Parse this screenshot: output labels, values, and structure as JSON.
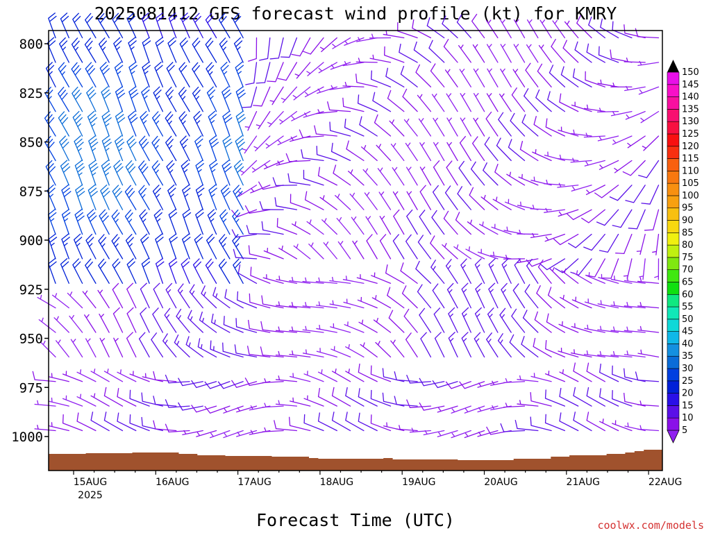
{
  "chart_data": {
    "type": "wind-barb-profile",
    "title": "2025081412 GFS forecast wind profile (kt) for KMRY",
    "xlabel": "Forecast Time (UTC)",
    "ylabel": "",
    "x_ticks": [
      "15AUG",
      "16AUG",
      "17AUG",
      "18AUG",
      "19AUG",
      "20AUG",
      "21AUG",
      "22AUG"
    ],
    "x_year_label": "2025",
    "y_ticks": [
      800,
      825,
      850,
      875,
      900,
      925,
      950,
      975,
      1000
    ],
    "ylim": [
      1020,
      795
    ],
    "wind_units": "kt",
    "colorbar": {
      "levels": [
        5,
        10,
        15,
        20,
        25,
        30,
        35,
        40,
        45,
        50,
        55,
        60,
        65,
        70,
        75,
        80,
        85,
        90,
        95,
        100,
        105,
        110,
        115,
        120,
        125,
        130,
        135,
        140,
        145,
        150
      ],
      "colors": [
        "#8a10e8",
        "#5a10e8",
        "#2a10e8",
        "#0020d8",
        "#0040e0",
        "#0a6cd8",
        "#1490e0",
        "#10b8e8",
        "#10d8d8",
        "#10e8b8",
        "#10e880",
        "#10e010",
        "#40e810",
        "#80e810",
        "#c0f010",
        "#f0f010",
        "#f8d810",
        "#f8c010",
        "#f8a010",
        "#f89010",
        "#f87810",
        "#f86010",
        "#f83010",
        "#f81010",
        "#f81040",
        "#f81070",
        "#f810a0",
        "#f810c8",
        "#e810e8",
        "#c810e8"
      ],
      "extend_colors": [
        "#9020f0",
        "#000000"
      ]
    },
    "terrain_color": "#a0522d",
    "credit": "coolwx.com/models"
  }
}
